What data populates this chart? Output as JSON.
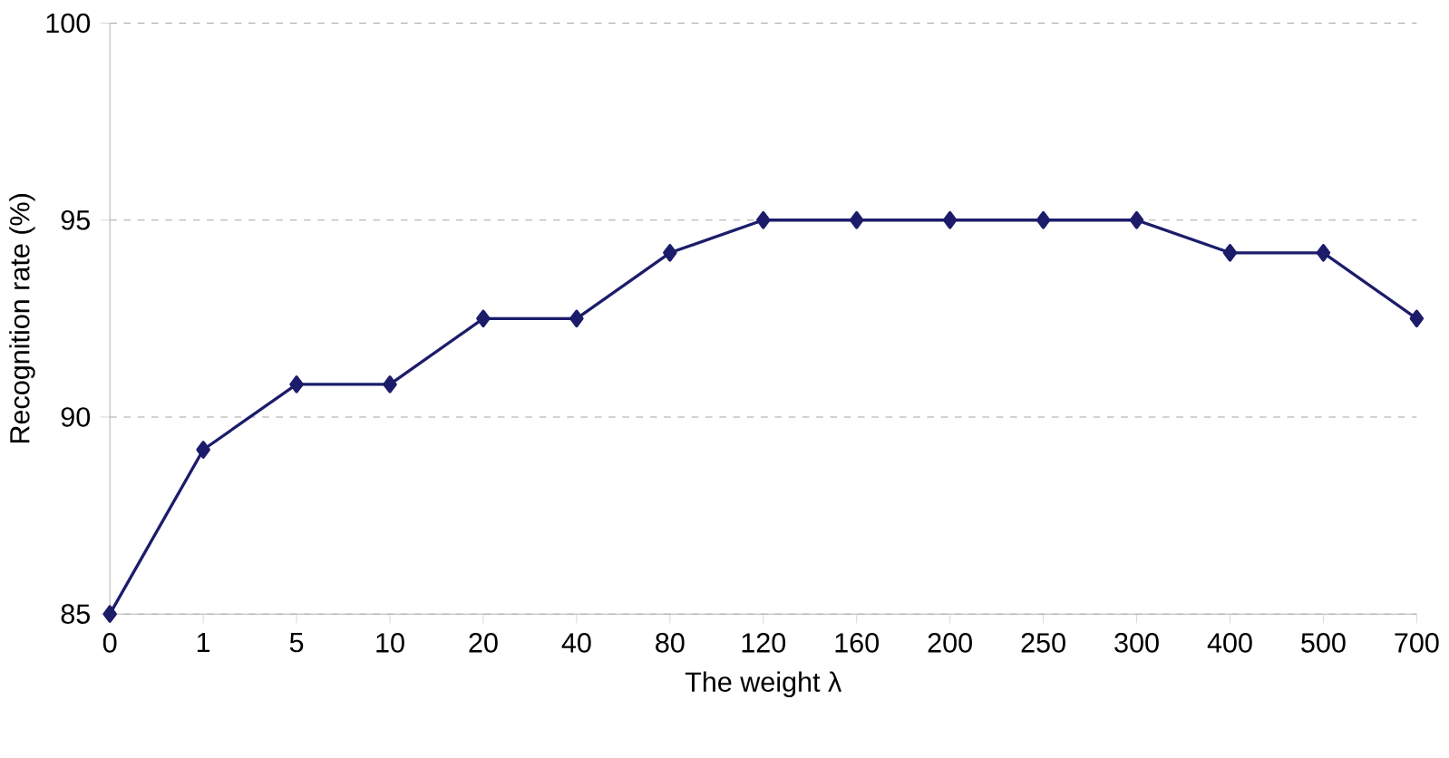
{
  "chart_data": {
    "type": "line",
    "xlabel": "The weight λ",
    "ylabel": "Recognition rate (%)",
    "categories": [
      "0",
      "1",
      "5",
      "10",
      "20",
      "40",
      "80",
      "120",
      "160",
      "200",
      "250",
      "300",
      "400",
      "500",
      "700"
    ],
    "series": [
      {
        "color": "#1c1c6b",
        "values": [
          85,
          89.17,
          90.83,
          90.83,
          92.5,
          92.5,
          94.17,
          95,
          95,
          95,
          95,
          95,
          94.17,
          94.17,
          92.5
        ]
      }
    ],
    "ylim": [
      85,
      100
    ],
    "yticks": [
      85,
      90,
      95,
      100
    ],
    "grid": "y",
    "marker": "diamond",
    "line_style": "solid"
  }
}
